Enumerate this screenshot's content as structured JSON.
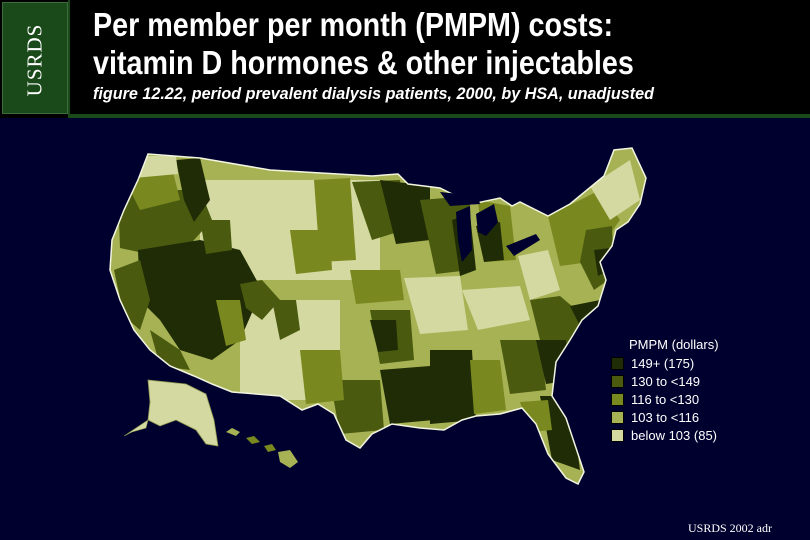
{
  "logo": "USRDS",
  "title_line1": "Per member per month (PMPM) costs:",
  "title_line2": "vitamin D hormones & other injectables",
  "subtitle": "figure 12.22, period prevalent dialysis patients, 2000, by HSA, unadjusted",
  "legend": {
    "title": "PMPM (dollars)",
    "items": [
      {
        "label": "149+ (175)",
        "color": "#1f2c05"
      },
      {
        "label": "130 to <149",
        "color": "#4a5b10"
      },
      {
        "label": "116 to <130",
        "color": "#79891f"
      },
      {
        "label": "103 to <116",
        "color": "#a6b253"
      },
      {
        "label": "below 103 (85)",
        "color": "#d3d9a0"
      }
    ]
  },
  "footer": "USRDS 2002 adr"
}
